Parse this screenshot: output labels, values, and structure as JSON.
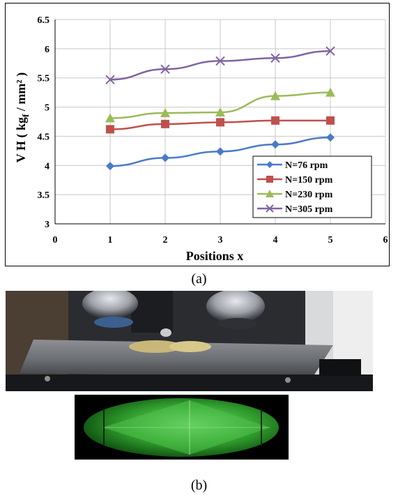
{
  "figure": {
    "caption_a": "(a)",
    "caption_b": "(b)"
  },
  "chart_data": {
    "type": "line",
    "ylabel": "V H ( kg",
    "ylabel_sub": "f",
    "ylabel_tail": " / mm² )",
    "xlabel": "Positions x",
    "xlim": [
      0,
      6
    ],
    "ylim": [
      3,
      6.5
    ],
    "xticks": [
      "0",
      "1",
      "2",
      "3",
      "4",
      "5",
      "6"
    ],
    "yticks": [
      "3",
      "3.5",
      "4",
      "4.5",
      "5",
      "5.5",
      "6",
      "6.5"
    ],
    "grid": true,
    "legend_position": "bottom-right",
    "x": [
      1,
      2,
      3,
      4,
      5
    ],
    "series": [
      {
        "name": "N=76 rpm",
        "values": [
          3.99,
          4.13,
          4.24,
          4.36,
          4.48
        ],
        "color": "#4a7bc8",
        "marker": "diamond"
      },
      {
        "name": "N=150 rpm",
        "values": [
          4.62,
          4.71,
          4.74,
          4.77,
          4.77
        ],
        "color": "#c0504d",
        "marker": "square"
      },
      {
        "name": "N=230 rpm",
        "values": [
          4.81,
          4.9,
          4.91,
          5.19,
          5.25
        ],
        "color": "#9bbb59",
        "marker": "triangle"
      },
      {
        "name": "N=305 rpm",
        "values": [
          5.47,
          5.65,
          5.79,
          5.84,
          5.96
        ],
        "color": "#8064a2",
        "marker": "x"
      }
    ]
  }
}
